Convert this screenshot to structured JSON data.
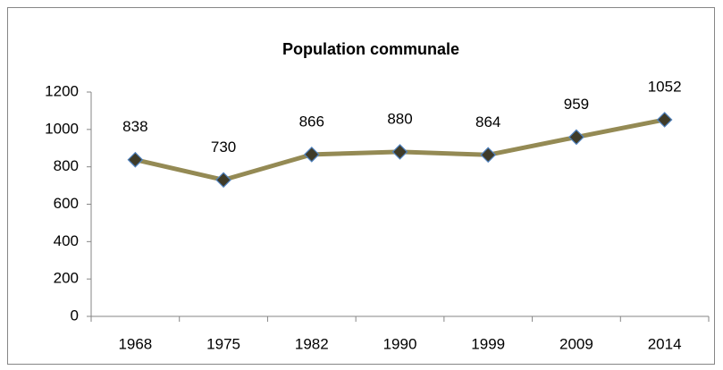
{
  "chart_data": {
    "type": "line",
    "title": "Population communale",
    "categories": [
      "1968",
      "1975",
      "1982",
      "1990",
      "1999",
      "2009",
      "2014"
    ],
    "values": [
      838,
      730,
      866,
      880,
      864,
      959,
      1052
    ],
    "color": "#948a54",
    "marker_fill": "#3f3b28",
    "marker_stroke": "#4f81bd",
    "ylim": [
      0,
      1200
    ],
    "yticks": [
      0,
      200,
      400,
      600,
      800,
      1000,
      1200
    ],
    "grid": false
  }
}
